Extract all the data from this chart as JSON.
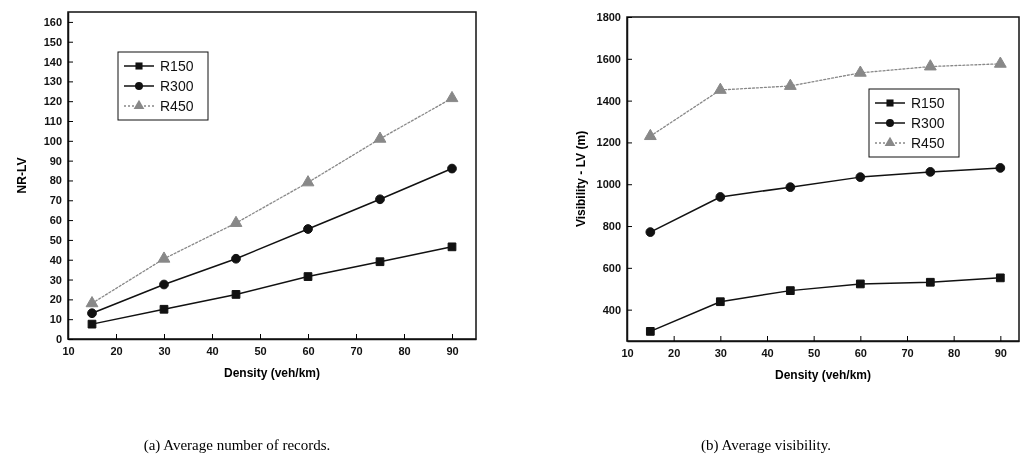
{
  "chart_data": [
    {
      "type": "line",
      "xlabel": "Density (veh/km)",
      "ylabel": "NR-LV",
      "annotations": [
        "(a)  Average number of records."
      ],
      "x": [
        15,
        30,
        45,
        60,
        75,
        90
      ],
      "xlim": [
        10,
        95
      ],
      "xticks": [
        10,
        20,
        30,
        40,
        50,
        60,
        70,
        80,
        90
      ],
      "ylim": [
        0,
        165
      ],
      "yticks": [
        0,
        10,
        20,
        30,
        40,
        50,
        60,
        70,
        80,
        90,
        100,
        110,
        120,
        130,
        140,
        150,
        160
      ],
      "legend": "top left",
      "grid": false,
      "series": [
        {
          "name": "R150",
          "color": "#111111",
          "marker": "square",
          "line_style": "solid",
          "values": [
            7.5,
            15,
            22.5,
            31.5,
            39,
            46.5
          ]
        },
        {
          "name": "R300",
          "color": "#111111",
          "marker": "circle",
          "line_style": "solid",
          "values": [
            13,
            27.5,
            40.5,
            55.5,
            70.5,
            86
          ]
        },
        {
          "name": "R450",
          "color": "#888888",
          "marker": "triangle",
          "line_style": "dotted",
          "values": [
            18,
            40.5,
            58.5,
            79,
            101,
            121.5
          ]
        }
      ]
    },
    {
      "type": "line",
      "xlabel": "Density (veh/km)",
      "ylabel": "Visibility - LV (m)",
      "annotations": [
        "(b)  Average visibility."
      ],
      "x": [
        15,
        30,
        45,
        60,
        75,
        90
      ],
      "xlim": [
        10,
        94
      ],
      "xticks": [
        10,
        20,
        30,
        40,
        50,
        60,
        70,
        80,
        90
      ],
      "ylim": [
        250,
        1800
      ],
      "yticks": [
        400,
        600,
        800,
        1000,
        1200,
        1400,
        1600,
        1800
      ],
      "legend": "right",
      "grid": false,
      "series": [
        {
          "name": "R150",
          "color": "#111111",
          "marker": "square",
          "line_style": "solid",
          "values": [
            296,
            438,
            491,
            523,
            531,
            552
          ]
        },
        {
          "name": "R300",
          "color": "#111111",
          "marker": "circle",
          "line_style": "solid",
          "values": [
            771,
            939,
            986,
            1034,
            1059,
            1078
          ]
        },
        {
          "name": "R450",
          "color": "#888888",
          "marker": "triangle",
          "line_style": "dotted",
          "values": [
            1230,
            1451,
            1470,
            1533,
            1563,
            1576
          ]
        }
      ]
    }
  ]
}
